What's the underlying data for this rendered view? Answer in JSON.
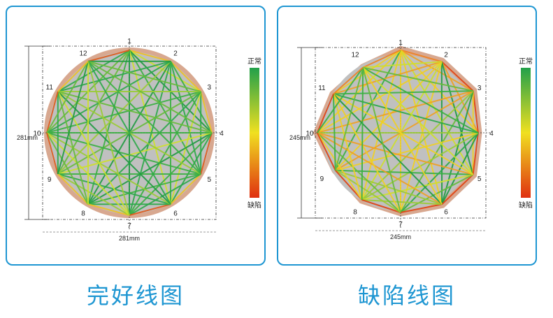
{
  "panels": [
    {
      "id": "left",
      "title": "完好线图",
      "dimension_h": "281mm",
      "dimension_v": "281mm",
      "scale_top": "正常",
      "scale_bottom": "缺陷",
      "node_labels": [
        "1",
        "2",
        "3",
        "4",
        "5",
        "6",
        "7",
        "8",
        "9",
        "10",
        "11",
        "12"
      ],
      "circle_shape": "regular",
      "line_quality": "good"
    },
    {
      "id": "right",
      "title": "缺陷线图",
      "dimension_h": "245mm",
      "dimension_v": "245mm",
      "scale_top": "正常",
      "scale_bottom": "缺陷",
      "node_labels": [
        "1",
        "2",
        "3",
        "4",
        "5",
        "6",
        "7",
        "8",
        "9",
        "10",
        "11",
        "12"
      ],
      "circle_shape": "irregular",
      "line_quality": "defective"
    }
  ],
  "colors": {
    "accent": "#1e96d2",
    "good": "#22a04a",
    "mid": "#f0e020",
    "bad": "#e03010",
    "fill": "#c0c0c0"
  }
}
